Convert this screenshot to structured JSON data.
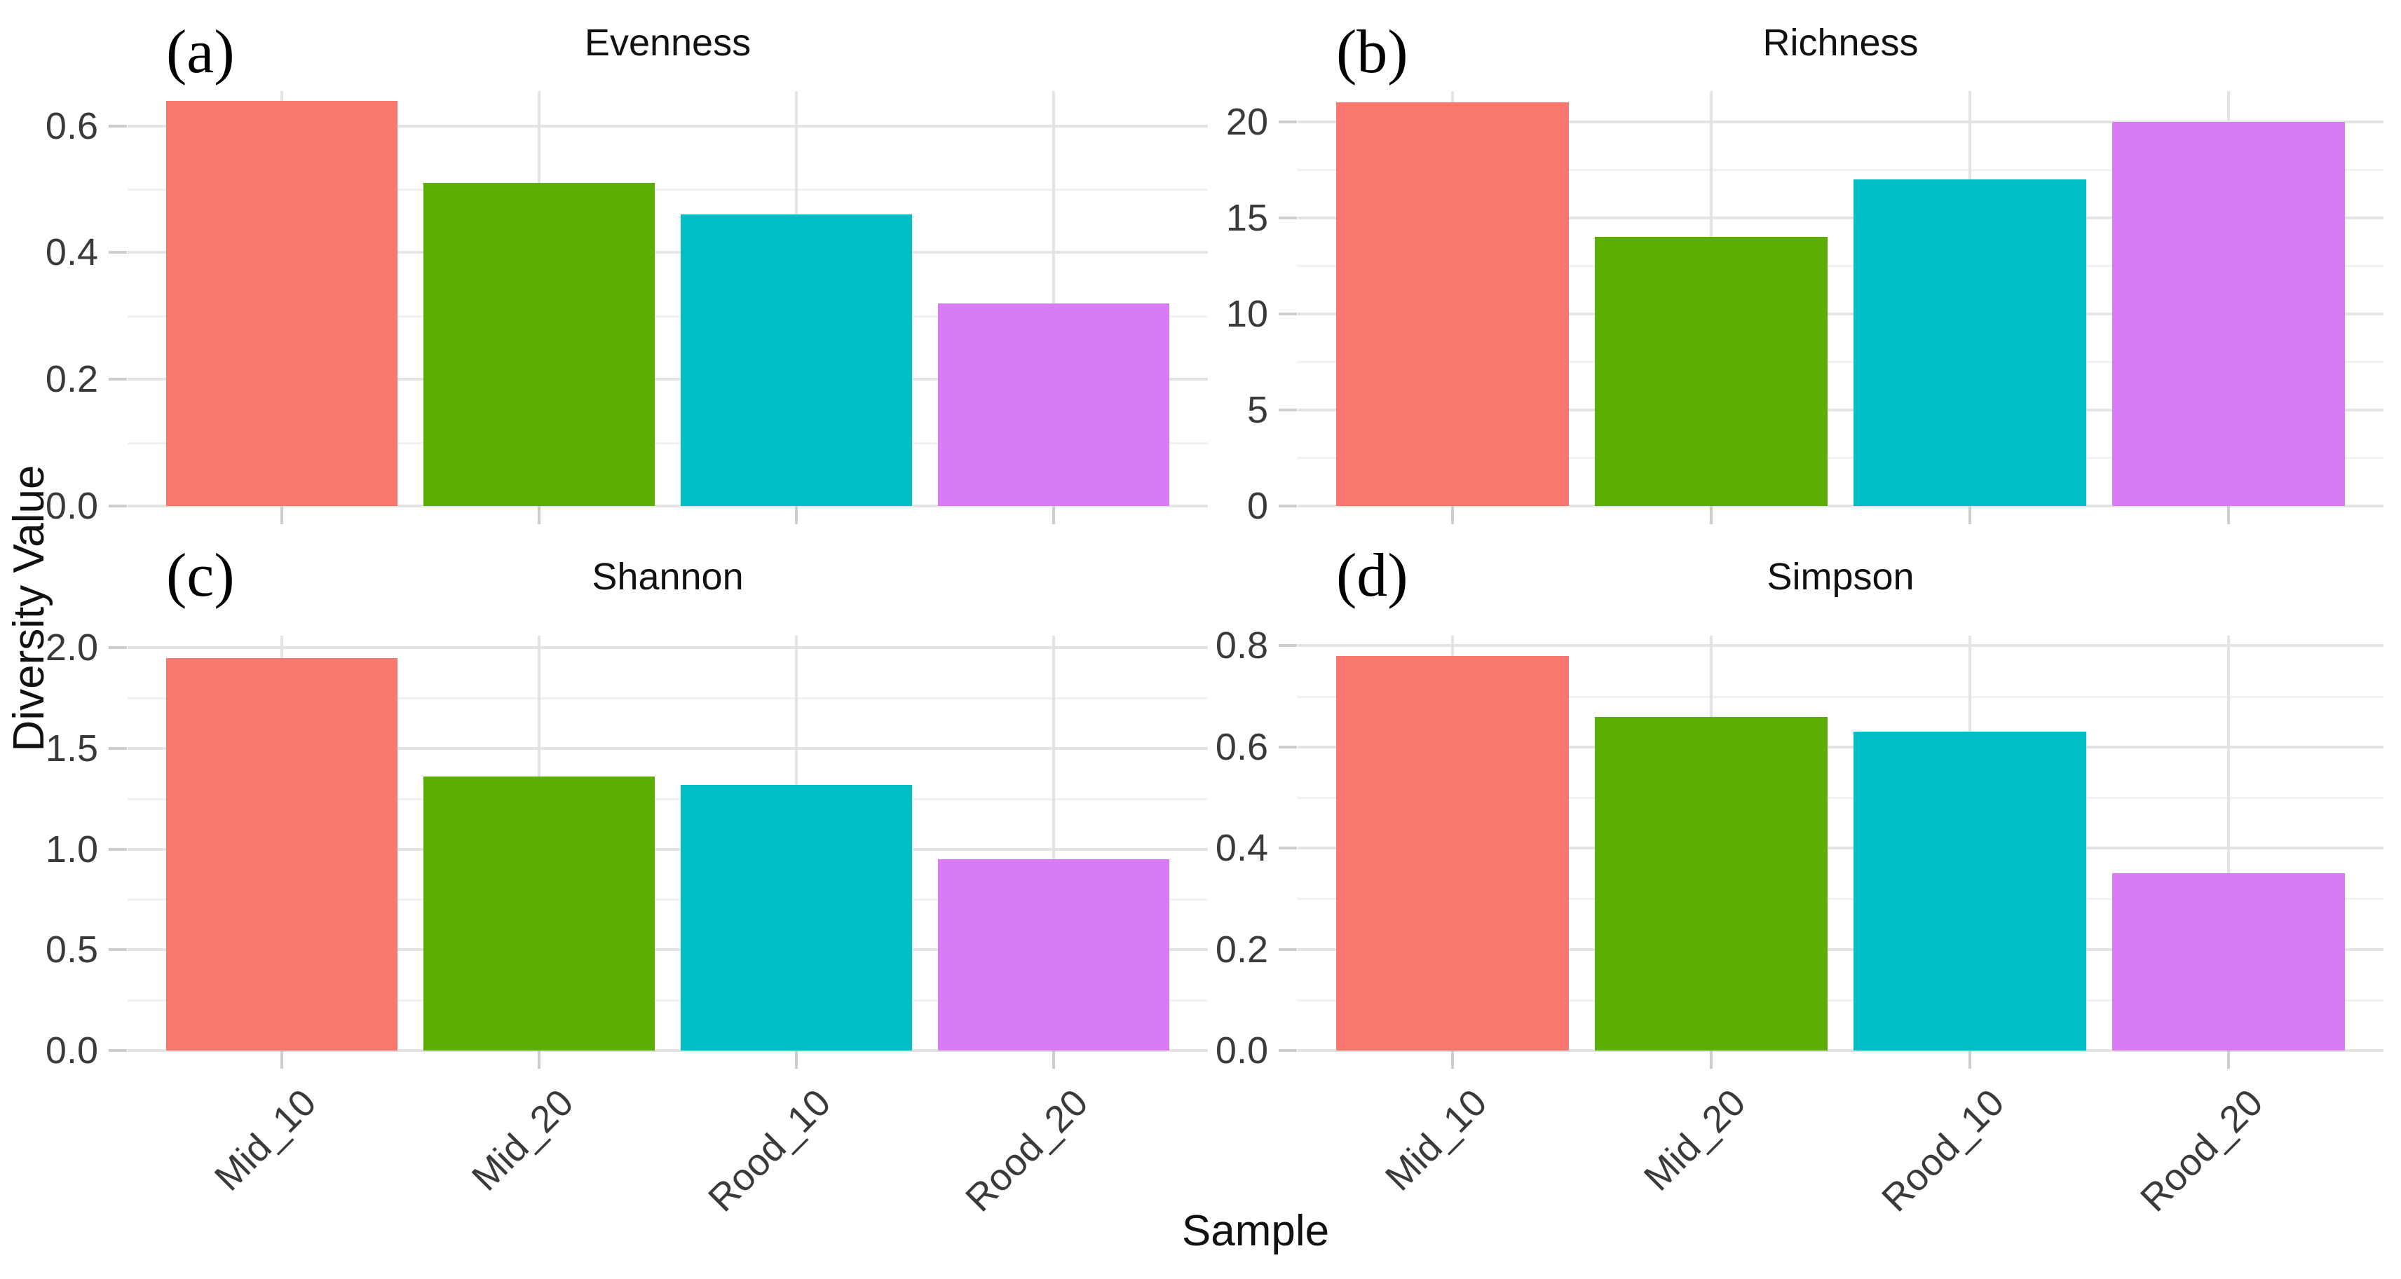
{
  "figure": {
    "xlabel": "Sample",
    "ylabel": "Diversity Value",
    "categories": [
      "Mid_10",
      "Mid_20",
      "Rood_10",
      "Rood_20"
    ],
    "bar_colors": [
      "#F9776E",
      "#5CAF02",
      "#00BFC4",
      "#D97BF5"
    ],
    "background_color": "#ffffff",
    "gridline_major_color": "#e4e4e4",
    "gridline_minor_color": "#f1f1f1"
  },
  "chart_data": [
    {
      "type": "bar",
      "panel_tag": "(a)",
      "title": "Evenness",
      "categories": [
        "Mid_10",
        "Mid_20",
        "Rood_10",
        "Rood_20"
      ],
      "values": [
        0.64,
        0.51,
        0.46,
        0.32
      ],
      "ylim": [
        0,
        0.655
      ],
      "yticks": [
        0.0,
        0.2,
        0.4,
        0.6
      ],
      "ytick_labels": [
        "0.0",
        "0.2",
        "0.4",
        "0.6"
      ],
      "minor_ticks": [
        0.1,
        0.3,
        0.5
      ],
      "grid": true,
      "legend": "none"
    },
    {
      "type": "bar",
      "panel_tag": "(b)",
      "title": "Richness",
      "categories": [
        "Mid_10",
        "Mid_20",
        "Rood_10",
        "Rood_20"
      ],
      "values": [
        21,
        14,
        17,
        20
      ],
      "ylim": [
        0,
        21.6
      ],
      "yticks": [
        0,
        5,
        10,
        15,
        20
      ],
      "ytick_labels": [
        "0",
        "5",
        "10",
        "15",
        "20"
      ],
      "minor_ticks": [
        2.5,
        7.5,
        12.5,
        17.5
      ],
      "grid": true,
      "legend": "none"
    },
    {
      "type": "bar",
      "panel_tag": "(c)",
      "title": "Shannon",
      "categories": [
        "Mid_10",
        "Mid_20",
        "Rood_10",
        "Rood_20"
      ],
      "values": [
        1.95,
        1.36,
        1.32,
        0.95
      ],
      "ylim": [
        0,
        2.06
      ],
      "yticks": [
        0.0,
        0.5,
        1.0,
        1.5,
        2.0
      ],
      "ytick_labels": [
        "0.0",
        "0.5",
        "1.0",
        "1.5",
        "2.0"
      ],
      "minor_ticks": [
        0.25,
        0.75,
        1.25,
        1.75
      ],
      "grid": true,
      "legend": "none"
    },
    {
      "type": "bar",
      "panel_tag": "(d)",
      "title": "Simpson",
      "categories": [
        "Mid_10",
        "Mid_20",
        "Rood_10",
        "Rood_20"
      ],
      "values": [
        0.78,
        0.66,
        0.63,
        0.35
      ],
      "ylim": [
        0,
        0.82
      ],
      "yticks": [
        0.0,
        0.2,
        0.4,
        0.6,
        0.8
      ],
      "ytick_labels": [
        "0.0",
        "0.2",
        "0.4",
        "0.6",
        "0.8"
      ],
      "minor_ticks": [
        0.1,
        0.3,
        0.5,
        0.7
      ],
      "grid": true,
      "legend": "none"
    }
  ]
}
